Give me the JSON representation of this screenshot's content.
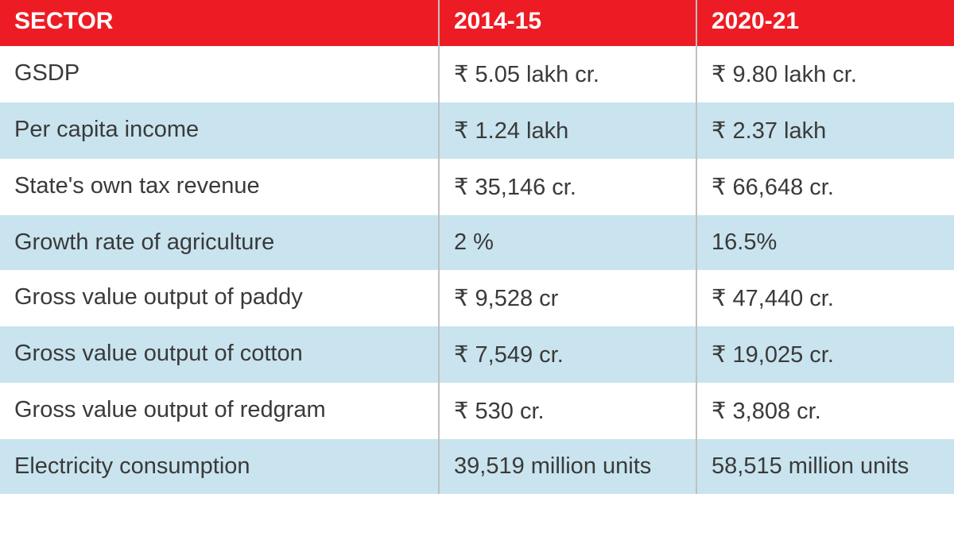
{
  "table": {
    "header_bg_color": "#ed1c24",
    "header_text_color": "#ffffff",
    "row_white_bg": "#ffffff",
    "row_blue_bg": "#c9e4ee",
    "border_color": "#c0c0c0",
    "text_color": "#3a3a3a",
    "header_font_size": 30,
    "cell_font_size": 29,
    "columns": [
      {
        "label": "SECTOR",
        "width": "46%"
      },
      {
        "label": "2014-15",
        "width": "27%"
      },
      {
        "label": "2020-21",
        "width": "27%"
      }
    ],
    "rows": [
      {
        "bg": "white",
        "cells": [
          "GSDP",
          "₹ 5.05 lakh cr.",
          "₹ 9.80 lakh cr."
        ]
      },
      {
        "bg": "blue",
        "cells": [
          "Per capita income",
          "₹ 1.24 lakh",
          "₹ 2.37 lakh"
        ]
      },
      {
        "bg": "white",
        "cells": [
          "State's own tax revenue",
          "₹ 35,146 cr.",
          "₹ 66,648 cr."
        ]
      },
      {
        "bg": "blue",
        "cells": [
          "Growth rate of agriculture",
          "2 %",
          "16.5%"
        ]
      },
      {
        "bg": "white",
        "cells": [
          "Gross value output of paddy",
          "₹ 9,528 cr",
          "₹ 47,440 cr."
        ]
      },
      {
        "bg": "blue",
        "cells": [
          "Gross value output of cotton",
          "₹ 7,549 cr.",
          "₹ 19,025 cr."
        ]
      },
      {
        "bg": "white",
        "cells": [
          "Gross value output of redgram",
          "₹ 530 cr.",
          "₹ 3,808 cr."
        ]
      },
      {
        "bg": "blue",
        "cells": [
          "Electricity consumption",
          "39,519 million units",
          "58,515 million units"
        ]
      }
    ]
  }
}
